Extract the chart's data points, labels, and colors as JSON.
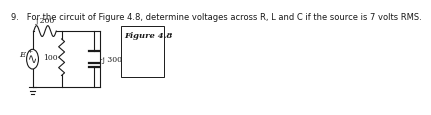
{
  "problem_text": "9.   For the circuit of Figure 4.8, determine voltages across R, L and C if the source is 7 volts RMS.",
  "figure_label": "Figure 4.8",
  "label_j200": "j 200",
  "label_100": "100",
  "label_j300": "-j 300",
  "label_E": "E",
  "text_color": "#1a1a1a",
  "line_color": "#1a1a1a",
  "bg_color": "#ffffff",
  "font_size_problem": 6.0,
  "font_size_labels": 5.5,
  "font_size_figure": 6.0
}
